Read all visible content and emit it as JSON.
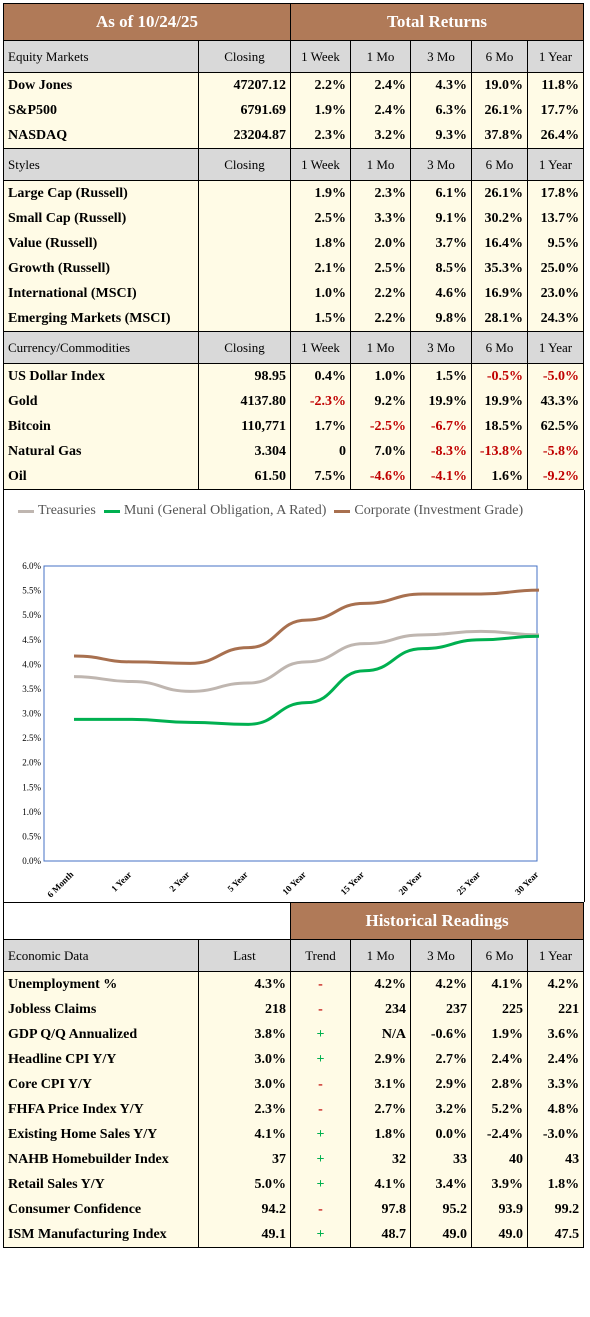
{
  "header": {
    "as_of": "As of  10/24/25",
    "total_returns": "Total Returns"
  },
  "colors": {
    "header_brown": "#b07a58",
    "row_bg": "#fffbe6",
    "section_gray": "#d9d9d9",
    "negative": "#c00000",
    "plus_green": "#00b050"
  },
  "columns": [
    "Closing",
    "1 Week",
    "1 Mo",
    "3 Mo",
    "6 Mo",
    "1 Year"
  ],
  "equity": {
    "title": "Equity Markets",
    "rows": [
      {
        "name": "Dow Jones",
        "closing": "47207.12",
        "w1": "2.2%",
        "m1": "2.4%",
        "m3": "4.3%",
        "m6": "19.0%",
        "y1": "11.8%"
      },
      {
        "name": "S&P500",
        "closing": "6791.69",
        "w1": "1.9%",
        "m1": "2.4%",
        "m3": "6.3%",
        "m6": "26.1%",
        "y1": "17.7%"
      },
      {
        "name": "NASDAQ",
        "closing": "23204.87",
        "w1": "2.3%",
        "m1": "3.2%",
        "m3": "9.3%",
        "m6": "37.8%",
        "y1": "26.4%"
      }
    ]
  },
  "styles": {
    "title": "Styles",
    "rows": [
      {
        "name": "Large Cap (Russell)",
        "closing": "",
        "w1": "1.9%",
        "m1": "2.3%",
        "m3": "6.1%",
        "m6": "26.1%",
        "y1": "17.8%"
      },
      {
        "name": "Small Cap (Russell)",
        "closing": "",
        "w1": "2.5%",
        "m1": "3.3%",
        "m3": "9.1%",
        "m6": "30.2%",
        "y1": "13.7%"
      },
      {
        "name": "Value (Russell)",
        "closing": "",
        "w1": "1.8%",
        "m1": "2.0%",
        "m3": "3.7%",
        "m6": "16.4%",
        "y1": "9.5%"
      },
      {
        "name": "Growth (Russell)",
        "closing": "",
        "w1": "2.1%",
        "m1": "2.5%",
        "m3": "8.5%",
        "m6": "35.3%",
        "y1": "25.0%"
      },
      {
        "name": "International (MSCI)",
        "closing": "",
        "w1": "1.0%",
        "m1": "2.2%",
        "m3": "4.6%",
        "m6": "16.9%",
        "y1": "23.0%"
      },
      {
        "name": "Emerging Markets (MSCI)",
        "closing": "",
        "w1": "1.5%",
        "m1": "2.2%",
        "m3": "9.8%",
        "m6": "28.1%",
        "y1": "24.3%"
      }
    ]
  },
  "currency": {
    "title": "Currency/Commodities",
    "rows": [
      {
        "name": "US Dollar Index",
        "closing": "98.95",
        "w1": "0.4%",
        "m1": "1.0%",
        "m3": "1.5%",
        "m6": "-0.5%",
        "y1": "-5.0%"
      },
      {
        "name": "Gold",
        "closing": "4137.80",
        "w1": "-2.3%",
        "m1": "9.2%",
        "m3": "19.9%",
        "m6": "19.9%",
        "y1": "43.3%"
      },
      {
        "name": "Bitcoin",
        "closing": "110,771",
        "w1": "1.7%",
        "m1": "-2.5%",
        "m3": "-6.7%",
        "m6": "18.5%",
        "y1": "62.5%"
      },
      {
        "name": "Natural Gas",
        "closing": "3.304",
        "w1": "0",
        "m1": "7.0%",
        "m3": "-8.3%",
        "m6": "-13.8%",
        "y1": "-5.8%"
      },
      {
        "name": "Oil",
        "closing": "61.50",
        "w1": "7.5%",
        "m1": "-4.6%",
        "m3": "-4.1%",
        "m6": "1.6%",
        "y1": "-9.2%"
      }
    ]
  },
  "chart_data": {
    "type": "line",
    "categories": [
      "6 Month",
      "1 Year",
      "2 Year",
      "5 Year",
      "10 Year",
      "15 Year",
      "20 Year",
      "25 Year",
      "30 Year"
    ],
    "series": [
      {
        "name": "Treasuries",
        "color": "#bfb6b0",
        "values": [
          3.75,
          3.65,
          3.45,
          3.62,
          4.05,
          4.42,
          4.6,
          4.67,
          4.6
        ]
      },
      {
        "name": "Muni (General Obligation, A Rated)",
        "color": "#00b050",
        "values": [
          2.88,
          2.88,
          2.82,
          2.78,
          3.22,
          3.87,
          4.32,
          4.5,
          4.57
        ]
      },
      {
        "name": "Corporate (Investment Grade)",
        "color": "#a8704f",
        "values": [
          4.17,
          4.05,
          4.02,
          4.34,
          4.9,
          5.24,
          5.43,
          5.43,
          5.51
        ]
      }
    ],
    "y_ticks": [
      "0.0%",
      "0.5%",
      "1.0%",
      "1.5%",
      "2.0%",
      "2.5%",
      "3.0%",
      "3.5%",
      "4.0%",
      "4.5%",
      "5.0%",
      "5.5%",
      "6.0%"
    ],
    "ylim": [
      0,
      6
    ],
    "legend_position": "top"
  },
  "historical": {
    "title": "Historical Readings",
    "section_label": "Economic Data",
    "columns": [
      "Last",
      "Trend",
      "1 Mo",
      "3 Mo",
      "6 Mo",
      "1 Year"
    ],
    "rows": [
      {
        "name": "Unemployment %",
        "last": "4.3%",
        "trend": "-",
        "m1": "4.2%",
        "m3": "4.2%",
        "m6": "4.1%",
        "y1": "4.2%"
      },
      {
        "name": "Jobless Claims",
        "last": "218",
        "trend": "-",
        "m1": "234",
        "m3": "237",
        "m6": "225",
        "y1": "221"
      },
      {
        "name": "GDP Q/Q Annualized",
        "last": "3.8%",
        "trend": "+",
        "m1": "N/A",
        "m3": "-0.6%",
        "m6": "1.9%",
        "y1": "3.6%"
      },
      {
        "name": "Headline CPI Y/Y",
        "last": "3.0%",
        "trend": "+",
        "m1": "2.9%",
        "m3": "2.7%",
        "m6": "2.4%",
        "y1": "2.4%"
      },
      {
        "name": "Core CPI Y/Y",
        "last": "3.0%",
        "trend": "-",
        "m1": "3.1%",
        "m3": "2.9%",
        "m6": "2.8%",
        "y1": "3.3%"
      },
      {
        "name": "FHFA Price Index Y/Y",
        "last": "2.3%",
        "trend": "-",
        "m1": "2.7%",
        "m3": "3.2%",
        "m6": "5.2%",
        "y1": "4.8%"
      },
      {
        "name": "Existing Home Sales Y/Y",
        "last": "4.1%",
        "trend": "+",
        "m1": "1.8%",
        "m3": "0.0%",
        "m6": "-2.4%",
        "y1": "-3.0%"
      },
      {
        "name": "NAHB Homebuilder Index",
        "last": "37",
        "trend": "+",
        "m1": "32",
        "m3": "33",
        "m6": "40",
        "y1": "43"
      },
      {
        "name": "Retail Sales Y/Y",
        "last": "5.0%",
        "trend": "+",
        "m1": "4.1%",
        "m3": "3.4%",
        "m6": "3.9%",
        "y1": "1.8%"
      },
      {
        "name": "Consumer Confidence",
        "last": "94.2",
        "trend": "-",
        "m1": "97.8",
        "m3": "95.2",
        "m6": "93.9",
        "y1": "99.2"
      },
      {
        "name": "ISM Manufacturing Index",
        "last": "49.1",
        "trend": "+",
        "m1": "48.7",
        "m3": "49.0",
        "m6": "49.0",
        "y1": "47.5"
      }
    ]
  }
}
